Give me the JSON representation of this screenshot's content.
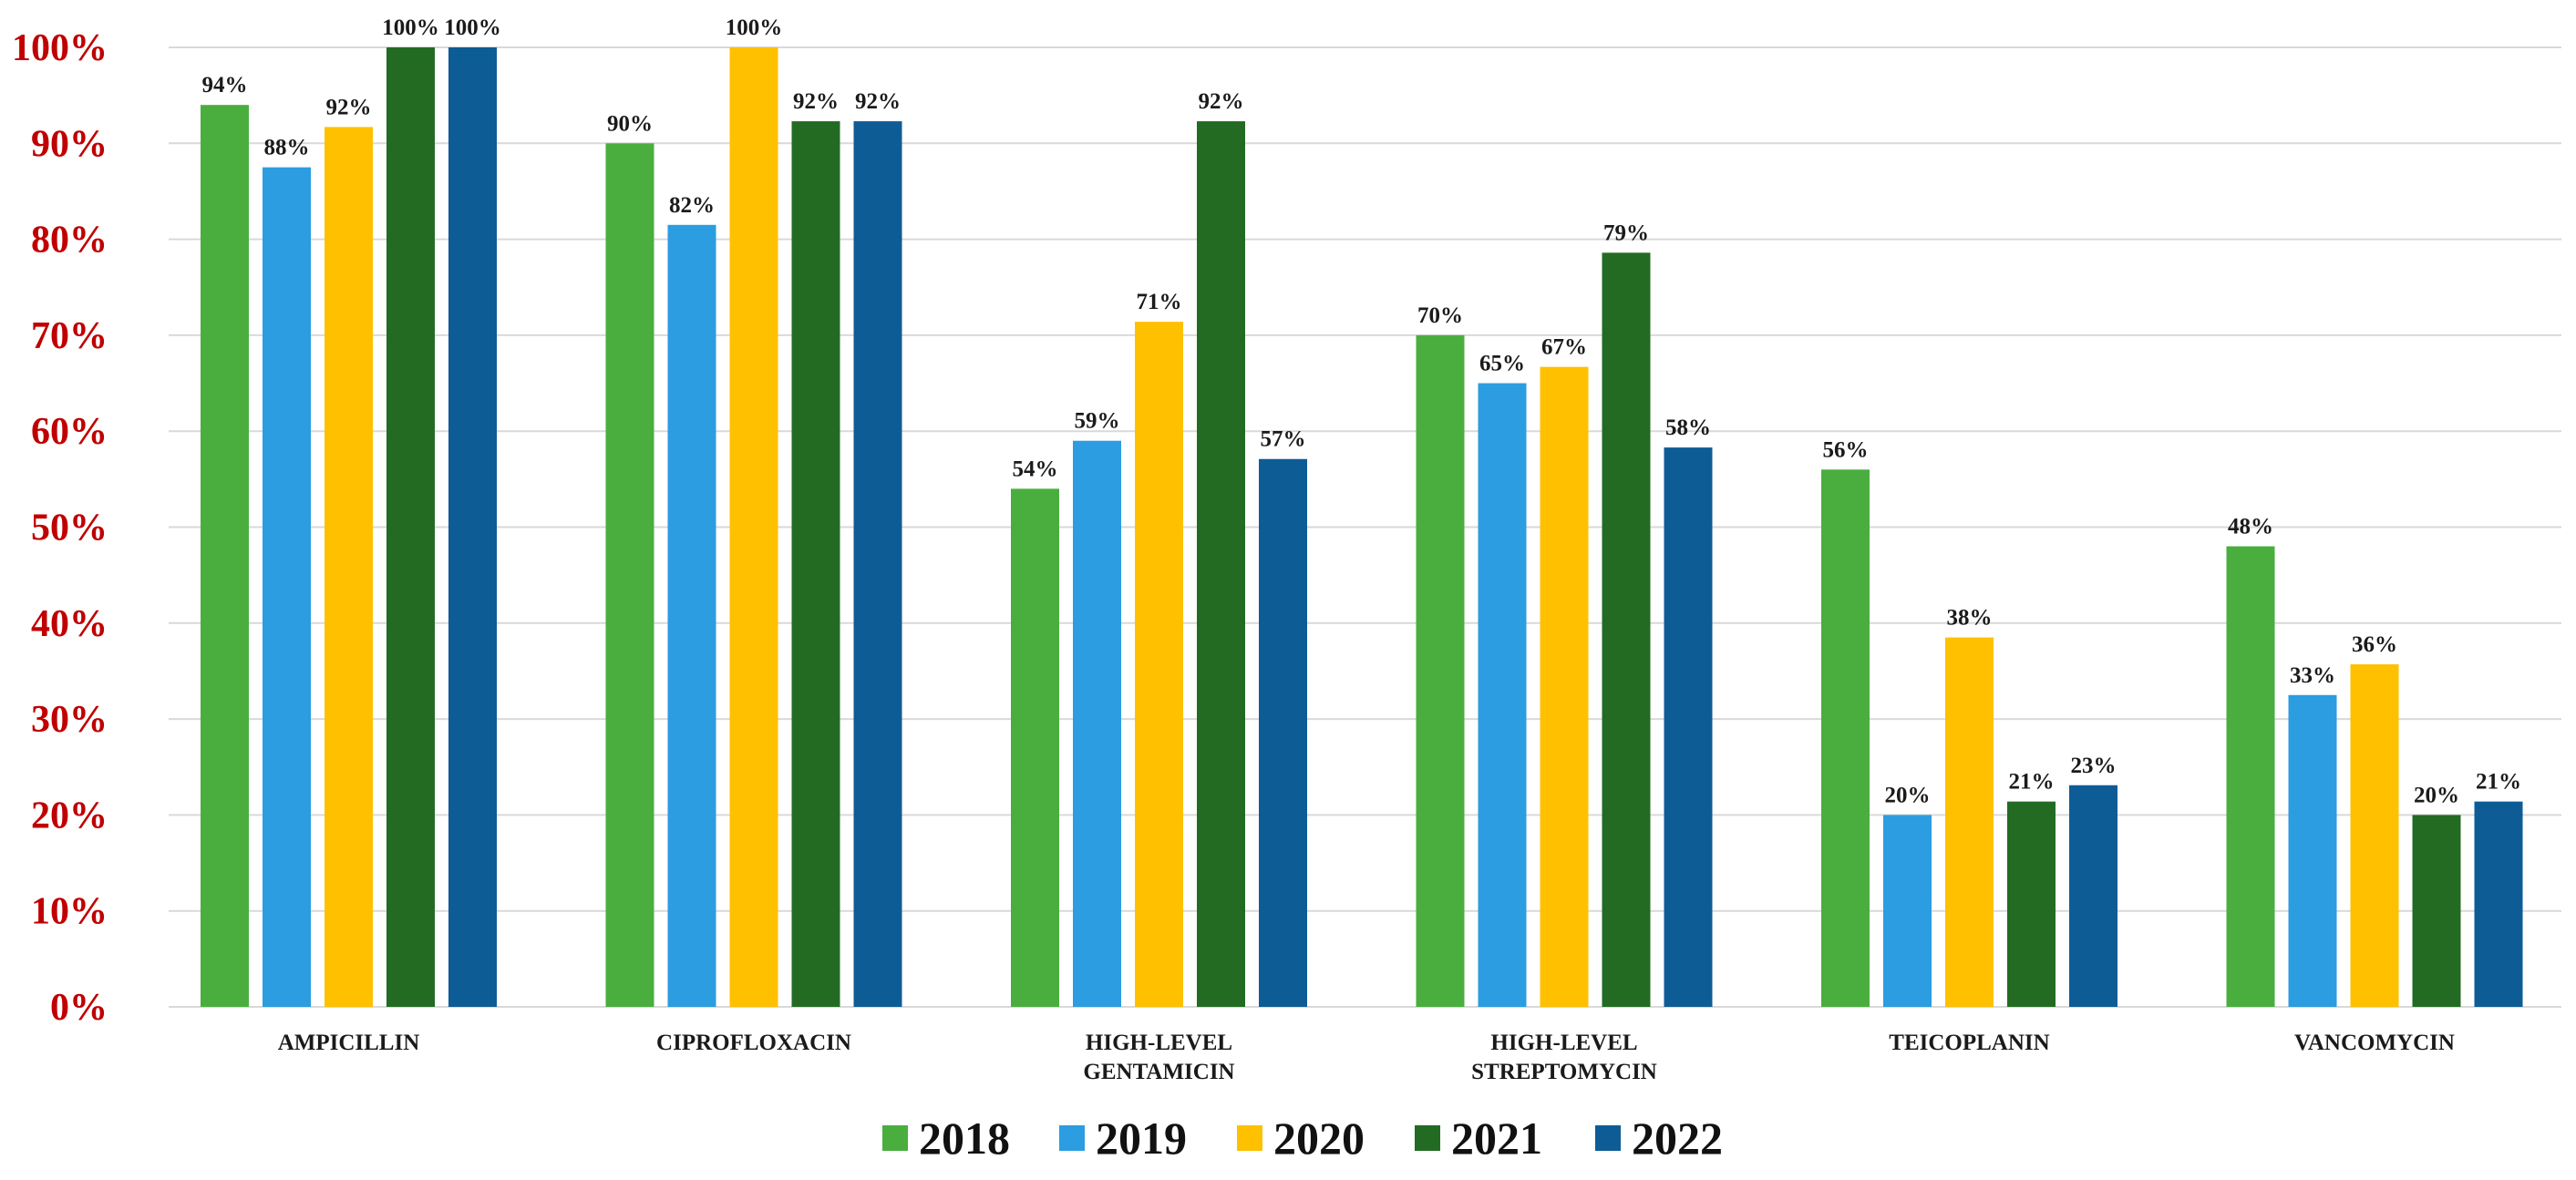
{
  "chart_data": {
    "type": "bar",
    "title": "",
    "xlabel": "",
    "ylabel": "",
    "ylim": [
      0,
      100
    ],
    "yticks": [
      "0%",
      "10%",
      "20%",
      "30%",
      "40%",
      "50%",
      "60%",
      "70%",
      "80%",
      "90%",
      "100%"
    ],
    "ytick_values": [
      0,
      10,
      20,
      30,
      40,
      50,
      60,
      70,
      80,
      90,
      100
    ],
    "ytick_color": "#c00000",
    "grid_color": "#d9d9d9",
    "categories": [
      [
        "AMPICILLIN"
      ],
      [
        "CIPROFLOXACIN"
      ],
      [
        "HIGH-LEVEL",
        "GENTAMICIN"
      ],
      [
        "HIGH-LEVEL",
        "STREPTOMYCIN"
      ],
      [
        "TEICOPLANIN"
      ],
      [
        "VANCOMYCIN"
      ]
    ],
    "series": [
      {
        "name": "2018",
        "color": "#4aae3f",
        "values": [
          94,
          90,
          54,
          70,
          56,
          48
        ],
        "labels": [
          "94%",
          "90%",
          "54%",
          "70%",
          "56%",
          "48%"
        ]
      },
      {
        "name": "2019",
        "color": "#2b9de0",
        "values": [
          87.5,
          81.5,
          59,
          65,
          20,
          32.5
        ],
        "labels": [
          "88%",
          "82%",
          "59%",
          "65%",
          "20%",
          "33%"
        ]
      },
      {
        "name": "2020",
        "color": "#ffc000",
        "values": [
          91.7,
          100,
          71.4,
          66.7,
          38.5,
          35.7
        ],
        "labels": [
          "92%",
          "100%",
          "71%",
          "67%",
          "38%",
          "36%"
        ]
      },
      {
        "name": "2021",
        "color": "#236b23",
        "values": [
          100,
          92.3,
          92.3,
          78.6,
          21.4,
          20
        ],
        "labels": [
          "100%",
          "92%",
          "92%",
          "79%",
          "21%",
          "20%"
        ]
      },
      {
        "name": "2022",
        "color": "#0e5c96",
        "values": [
          100,
          92.3,
          57.1,
          58.3,
          23.1,
          21.4
        ],
        "labels": [
          "100%",
          "92%",
          "57%",
          "58%",
          "23%",
          "21%"
        ]
      }
    ],
    "legend": {
      "position": "bottom-center",
      "entries": [
        "2018",
        "2019",
        "2020",
        "2021",
        "2022"
      ]
    }
  }
}
